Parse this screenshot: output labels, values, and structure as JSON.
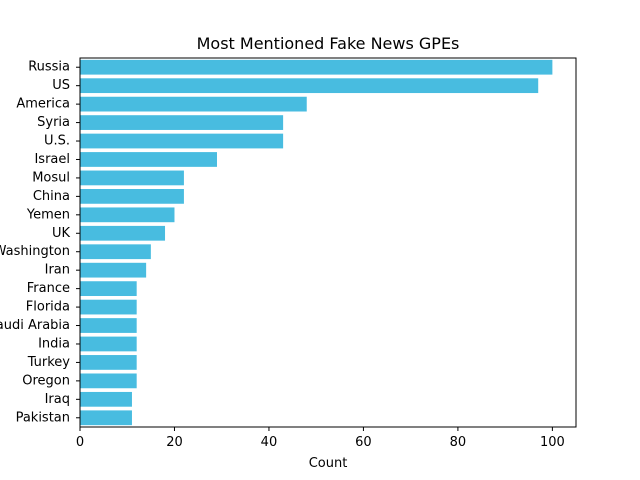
{
  "chart_data": {
    "type": "bar",
    "orientation": "horizontal",
    "title": "Most Mentioned Fake News GPEs",
    "xlabel": "Count",
    "ylabel": "",
    "categories": [
      "Russia",
      "US",
      "America",
      "Syria",
      "U.S.",
      "Israel",
      "Mosul",
      "China",
      "Yemen",
      "UK",
      "Washington",
      "Iran",
      "France",
      "Florida",
      "Saudi Arabia",
      "India",
      "Turkey",
      "Oregon",
      "Iraq",
      "Pakistan"
    ],
    "values": [
      100,
      97,
      48,
      43,
      43,
      29,
      22,
      22,
      20,
      18,
      15,
      14,
      12,
      12,
      12,
      12,
      12,
      12,
      11,
      11
    ],
    "xlim": [
      0,
      105
    ],
    "xticks": [
      0,
      20,
      40,
      60,
      80,
      100
    ],
    "grid": false,
    "color": "#48bce0"
  }
}
